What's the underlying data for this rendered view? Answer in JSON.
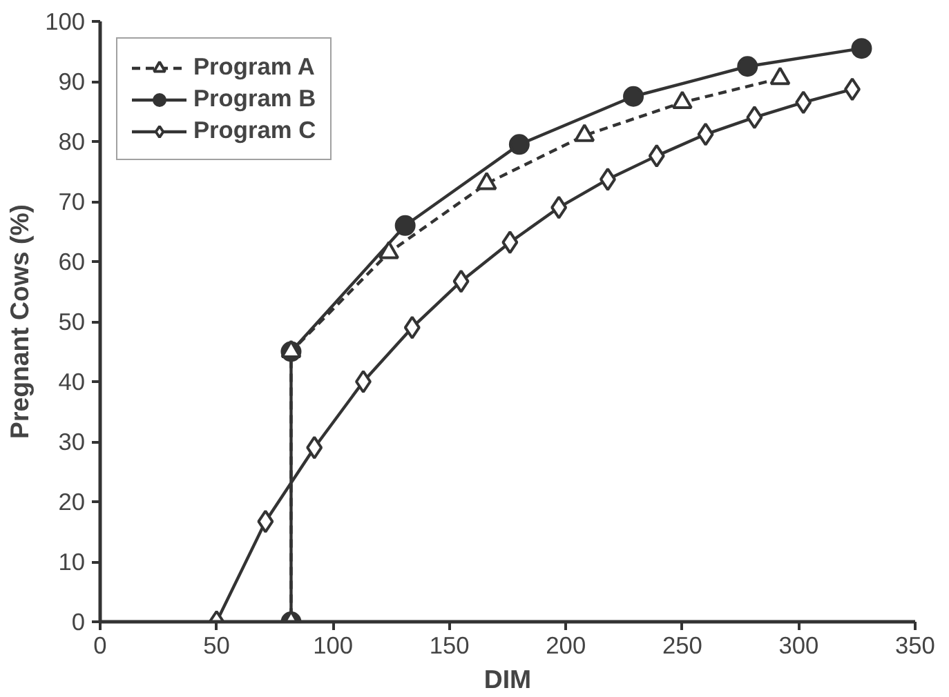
{
  "chart_data": {
    "type": "line",
    "xlabel": "DIM",
    "ylabel": "Pregnant Cows (%)",
    "xlim": [
      0,
      350
    ],
    "xticks": [
      0,
      50,
      100,
      150,
      200,
      250,
      300,
      350
    ],
    "ylim": [
      0,
      100
    ],
    "yticks": [
      0,
      10,
      20,
      30,
      40,
      50,
      60,
      70,
      80,
      90,
      100
    ],
    "grid": false,
    "legend": "top left",
    "series": [
      {
        "name": "Program A",
        "color": "#333333",
        "marker": "triangle",
        "line_style": "dashed",
        "x": [
          292,
          250,
          208,
          166,
          124,
          82,
          82
        ],
        "values": [
          90.5,
          86.5,
          81,
          73,
          61.5,
          45,
          0
        ]
      },
      {
        "name": "Program B",
        "color": "#333333",
        "marker": "circle",
        "line_style": "solid",
        "x": [
          82,
          82,
          131,
          180,
          229,
          278,
          327
        ],
        "values": [
          0,
          45,
          66,
          79.5,
          87.5,
          92.5,
          95.5
        ]
      },
      {
        "name": "Program C",
        "color": "#333333",
        "marker": "diamond",
        "line_style": "solid",
        "x": [
          50,
          71,
          92,
          113,
          134,
          155,
          176,
          197,
          218,
          239,
          260,
          281,
          302,
          323
        ],
        "values": [
          0,
          16.7,
          29,
          40,
          49,
          56.7,
          63.2,
          69,
          73.7,
          77.6,
          81.2,
          84,
          86.5,
          88.7
        ]
      }
    ]
  }
}
